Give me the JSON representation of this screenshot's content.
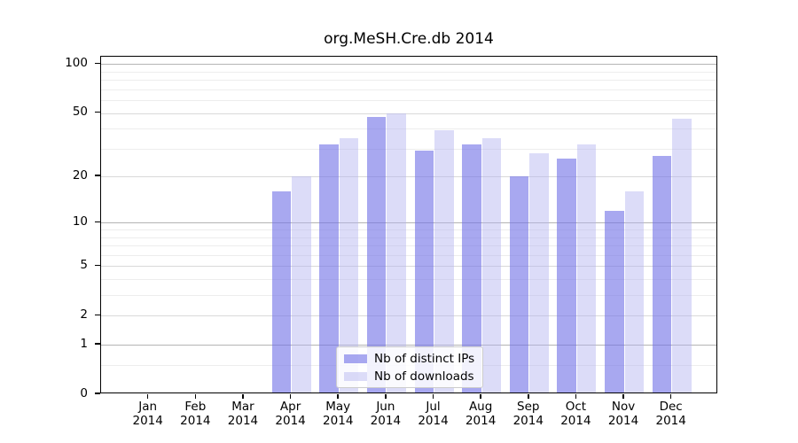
{
  "chart_data": {
    "type": "bar",
    "title": "org.MeSH.Cre.db 2014",
    "categories": [
      "Jan 2014",
      "Feb 2014",
      "Mar 2014",
      "Apr 2014",
      "May 2014",
      "Jun 2014",
      "Jul 2014",
      "Aug 2014",
      "Sep 2014",
      "Oct 2014",
      "Nov 2014",
      "Dec 2014"
    ],
    "series": [
      {
        "name": "Nb of distinct IPs",
        "color": "rgba(115,115,231,0.62)",
        "values": [
          0,
          0,
          0,
          16,
          32,
          47,
          29,
          32,
          20,
          26,
          12,
          27
        ]
      },
      {
        "name": "Nb of downloads",
        "color": "rgba(177,177,240,0.45)",
        "values": [
          0,
          0,
          0,
          20,
          35,
          50,
          39,
          35,
          28,
          32,
          16,
          46
        ]
      }
    ],
    "xlabel": "",
    "ylabel": "",
    "y_axis": {
      "scale": "log10(1+value)",
      "ticks": [
        0,
        1,
        2,
        5,
        10,
        20,
        50,
        100
      ],
      "minor_ticks": [
        0.5,
        3,
        4,
        6,
        7,
        8,
        9,
        30,
        40,
        60,
        70,
        80,
        90
      ],
      "ylim": [
        0,
        110
      ]
    },
    "grid": "on",
    "legend": {
      "position": "inside-bottom-center",
      "entries": [
        "Nb of distinct IPs",
        "Nb of downloads"
      ]
    }
  },
  "colors": {
    "bar_distinct_ips": "rgba(115,115,231,0.62)",
    "bar_downloads": "rgba(177,177,240,0.45)",
    "grid_major": "#d9d9d9",
    "grid_decade": "#b4b4b4",
    "grid_minor": "#ededed",
    "axis_frame": "#000000",
    "legend_border": "#cccccc"
  }
}
